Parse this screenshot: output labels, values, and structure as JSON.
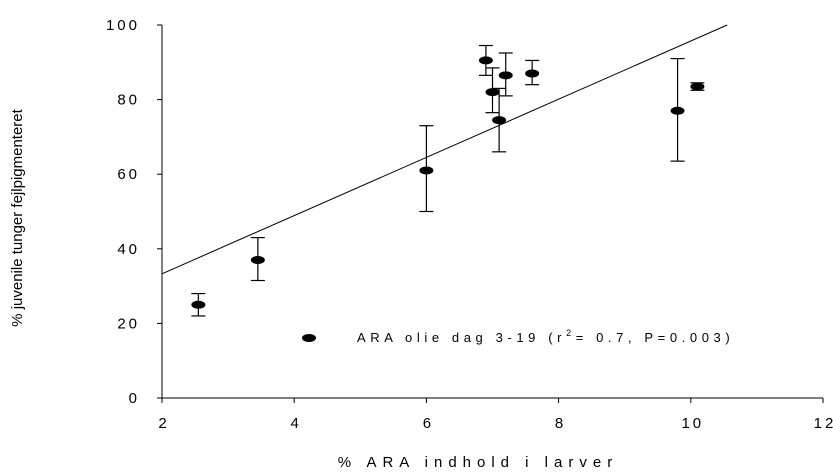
{
  "chart_data": {
    "type": "scatter",
    "xlabel": "% ARA indhold i larver",
    "ylabel": "% juvenile tunger fejlpigmenteret",
    "xlim": [
      2,
      12
    ],
    "ylim": [
      0,
      100
    ],
    "x_ticks": [
      "2",
      "4",
      "6",
      "8",
      "10",
      "12"
    ],
    "y_ticks": [
      "0",
      "20",
      "40",
      "60",
      "80",
      "100"
    ],
    "grid": false,
    "legend": {
      "position": "bottom-right",
      "label_prefix": "ARA olie dag 3-19 (r",
      "label_sup": "2",
      "label_suffix": "= 0.7, P=0.003)"
    },
    "series": [
      {
        "points": [
          {
            "x": 2.55,
            "y": 25,
            "err_low": 22,
            "err_high": 28
          },
          {
            "x": 3.45,
            "y": 37,
            "err_low": 31.5,
            "err_high": 43
          },
          {
            "x": 6.0,
            "y": 61,
            "err_low": 50,
            "err_high": 73
          },
          {
            "x": 6.9,
            "y": 90.5,
            "err_low": 86.5,
            "err_high": 94.5
          },
          {
            "x": 7.0,
            "y": 82,
            "err_low": 76.5,
            "err_high": 88.5
          },
          {
            "x": 7.1,
            "y": 74.5,
            "err_low": 66,
            "err_high": 83
          },
          {
            "x": 7.2,
            "y": 86.5,
            "err_low": 81,
            "err_high": 92.5
          },
          {
            "x": 7.6,
            "y": 87,
            "err_low": 84,
            "err_high": 90.5
          },
          {
            "x": 9.8,
            "y": 77,
            "err_low": 63.5,
            "err_high": 91
          },
          {
            "x": 10.1,
            "y": 83.5,
            "err_low": 82.5,
            "err_high": 84.5
          }
        ]
      }
    ],
    "fit_line": {
      "x": [
        2,
        10.55
      ],
      "y": [
        33.3,
        100
      ]
    }
  }
}
